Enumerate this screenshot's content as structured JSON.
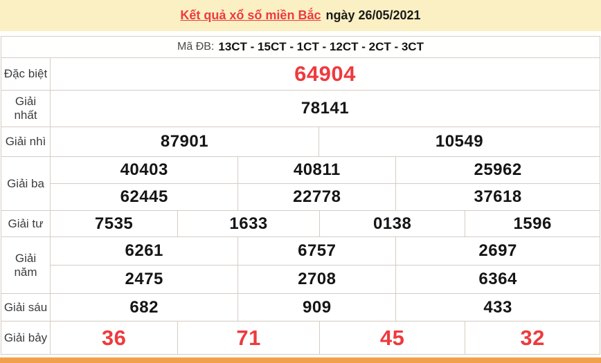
{
  "header": {
    "title_link": "Kết quả xổ số miền Bắc",
    "date_text": "ngày 26/05/2021"
  },
  "code_row": {
    "label": "Mã ĐB:",
    "codes": "13CT - 15CT - 1CT - 12CT - 2CT - 3CT"
  },
  "results": {
    "rows": [
      {
        "name": "dac-biet",
        "label": "Đặc biệt",
        "highlight": true,
        "tiers": [
          [
            "64904"
          ]
        ]
      },
      {
        "name": "giai-nhat",
        "label": "Giải nhất",
        "highlight": false,
        "tiers": [
          [
            "78141"
          ]
        ]
      },
      {
        "name": "giai-nhi",
        "label": "Giải nhì",
        "highlight": false,
        "tiers": [
          [
            "87901",
            "10549"
          ]
        ]
      },
      {
        "name": "giai-ba",
        "label": "Giải ba",
        "highlight": false,
        "tiers": [
          [
            "40403",
            "40811",
            "25962"
          ],
          [
            "62445",
            "22778",
            "37618"
          ]
        ]
      },
      {
        "name": "giai-tu",
        "label": "Giải tư",
        "highlight": false,
        "tiers": [
          [
            "7535",
            "1633",
            "0138",
            "1596"
          ]
        ]
      },
      {
        "name": "giai-nam",
        "label": "Giải năm",
        "highlight": false,
        "tiers": [
          [
            "6261",
            "6757",
            "2697"
          ],
          [
            "2475",
            "2708",
            "6364"
          ]
        ]
      },
      {
        "name": "giai-sau",
        "label": "Giải sáu",
        "highlight": false,
        "tiers": [
          [
            "682",
            "909",
            "433"
          ]
        ]
      },
      {
        "name": "giai-bay",
        "label": "Giải bảy",
        "highlight": true,
        "tiers": [
          [
            "36",
            "71",
            "45",
            "32"
          ]
        ]
      }
    ]
  },
  "colors": {
    "accent_red": "#ee3a3e",
    "header_yellow": "#faf0c3",
    "footer_orange": "#f3a04d",
    "border": "#d5ccc3"
  }
}
